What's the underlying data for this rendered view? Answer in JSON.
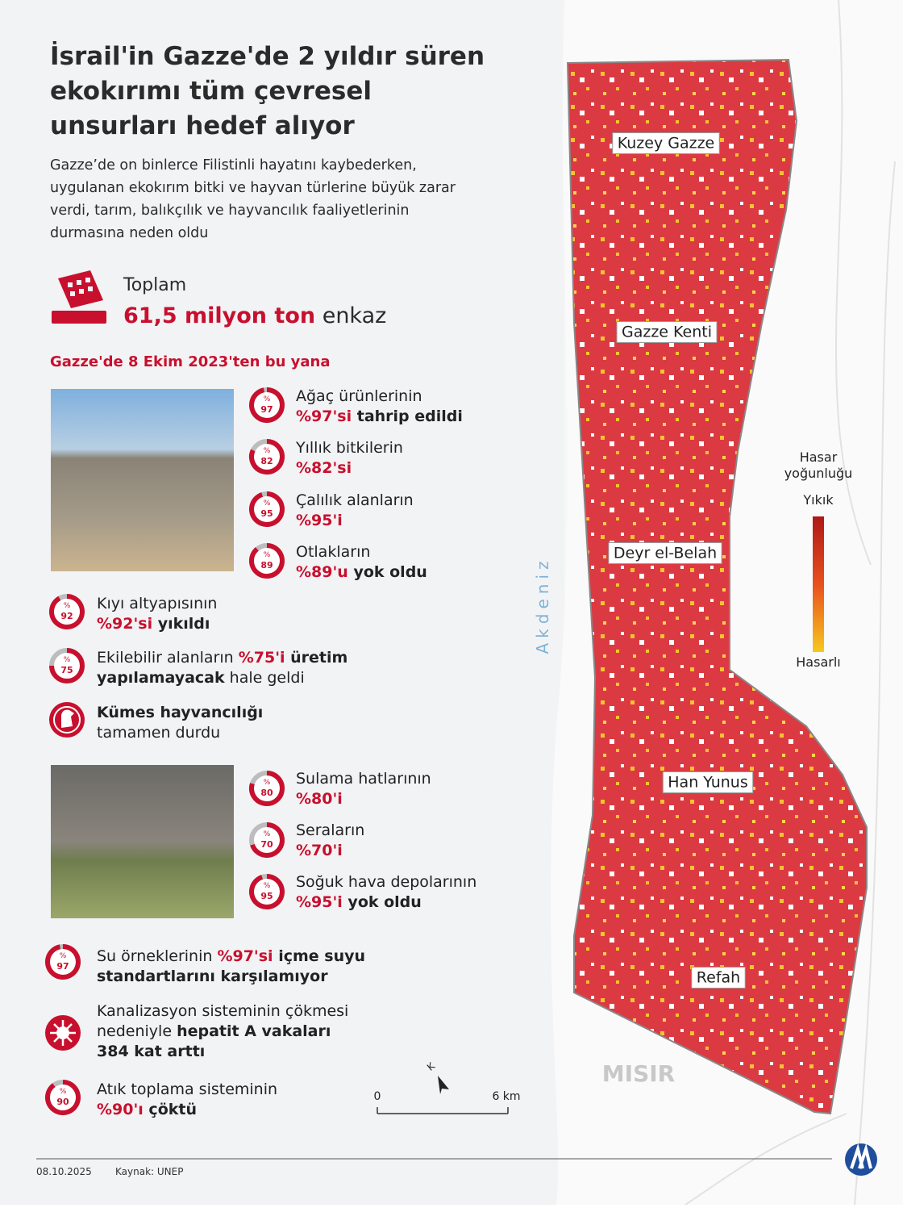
{
  "header": {
    "title": [
      "İsrail'in Gazze'de 2 yıldır süren",
      "ekokırımı tüm çevresel",
      "unsurları hedef alıyor"
    ],
    "subtitle": [
      "Gazze’de on binlerce Filistinli hayatını kaybederken,",
      "uygulanan ekokırım bitki ve hayvan türlerine büyük zarar",
      "verdi, tarım, balıkçılık ve hayvancılık faaliyetlerinin",
      "durmasına neden oldu"
    ]
  },
  "total": {
    "label": "Toplam",
    "amount": "61,5 milyon ton",
    "unit": "enkaz"
  },
  "section_title": "Gazze'de 8 Ekim 2023'ten bu yana",
  "percent_sign": "%",
  "stats": [
    {
      "value": 97,
      "lines": [
        [
          {
            "text": "Ağaç ürünlerinin",
            "style": "normal"
          }
        ],
        [
          {
            "text": "%97'si",
            "style": "accent"
          },
          {
            "text": " tahrip edildi",
            "style": "bold"
          }
        ]
      ]
    },
    {
      "value": 82,
      "lines": [
        [
          {
            "text": "Yıllık bitkilerin",
            "style": "normal"
          }
        ],
        [
          {
            "text": "%82'si",
            "style": "accent"
          }
        ]
      ]
    },
    {
      "value": 95,
      "lines": [
        [
          {
            "text": "Çalılık alanların",
            "style": "normal"
          }
        ],
        [
          {
            "text": "%95'i",
            "style": "accent"
          }
        ]
      ]
    },
    {
      "value": 89,
      "lines": [
        [
          {
            "text": "Otlakların",
            "style": "normal"
          }
        ],
        [
          {
            "text": "%89'u",
            "style": "accent"
          },
          {
            "text": " yok oldu",
            "style": "bold"
          }
        ]
      ]
    },
    {
      "value": 92,
      "lines": [
        [
          {
            "text": "Kıyı altyapısının",
            "style": "normal"
          }
        ],
        [
          {
            "text": "%92'si",
            "style": "accent"
          },
          {
            "text": " yıkıldı",
            "style": "bold"
          }
        ]
      ]
    },
    {
      "value": 75,
      "lines": [
        [
          {
            "text": "Ekilebilir alanların ",
            "style": "normal"
          },
          {
            "text": "%75'i",
            "style": "accent"
          },
          {
            "text": " üretim",
            "style": "bold"
          }
        ],
        [
          {
            "text": "yapılamayacak",
            "style": "bold"
          },
          {
            "text": " hale geldi",
            "style": "normal"
          }
        ]
      ]
    },
    {
      "value": null,
      "lines": [
        [
          {
            "text": "Kümes hayvancılığı",
            "style": "bold"
          }
        ],
        [
          {
            "text": "tamamen durdu",
            "style": "normal"
          }
        ]
      ]
    },
    {
      "value": 80,
      "lines": [
        [
          {
            "text": "Sulama hatlarının",
            "style": "normal"
          }
        ],
        [
          {
            "text": "%80'i",
            "style": "accent"
          }
        ]
      ]
    },
    {
      "value": 70,
      "lines": [
        [
          {
            "text": "Seraların",
            "style": "normal"
          }
        ],
        [
          {
            "text": "%70'i",
            "style": "accent"
          }
        ]
      ]
    },
    {
      "value": 95,
      "lines": [
        [
          {
            "text": "Soğuk hava depolarının",
            "style": "normal"
          }
        ],
        [
          {
            "text": "%95'i",
            "style": "accent"
          },
          {
            "text": " yok oldu",
            "style": "bold"
          }
        ]
      ]
    },
    {
      "value": 97,
      "lines": [
        [
          {
            "text": "Su örneklerinin ",
            "style": "normal"
          },
          {
            "text": "%97'si",
            "style": "accent"
          },
          {
            "text": " içme suyu",
            "style": "bold"
          }
        ],
        [
          {
            "text": "standartlarını karşılamıyor",
            "style": "bold"
          }
        ]
      ]
    },
    {
      "value": null,
      "lines": [
        [
          {
            "text": "Kanalizasyon sisteminin çökmesi",
            "style": "normal"
          }
        ],
        [
          {
            "text": "nedeniyle ",
            "style": "normal"
          },
          {
            "text": "hepatit A vakaları",
            "style": "bold"
          }
        ],
        [
          {
            "text": "384 kat arttı",
            "style": "bold"
          }
        ]
      ]
    },
    {
      "value": 90,
      "lines": [
        [
          {
            "text": "Atık toplama sisteminin",
            "style": "normal"
          }
        ],
        [
          {
            "text": "%90'ı",
            "style": "accent"
          },
          {
            "text": " çöktü",
            "style": "bold"
          }
        ]
      ]
    }
  ],
  "map": {
    "regions": [
      "Kuzey Gazze",
      "Gazze Kenti",
      "Deyr el-Belah",
      "Han Yunus",
      "Refah"
    ],
    "sea": "Akdeniz",
    "country": "MISIR",
    "legend": {
      "title": [
        "Hasar",
        "yoğunluğu"
      ],
      "high": "Yıkık",
      "low": "Hasarlı"
    },
    "scale": {
      "start": "0",
      "end": "6 km"
    },
    "north": "K"
  },
  "footer": {
    "date": "08.10.2025",
    "source": "Kaynak: UNEP"
  }
}
